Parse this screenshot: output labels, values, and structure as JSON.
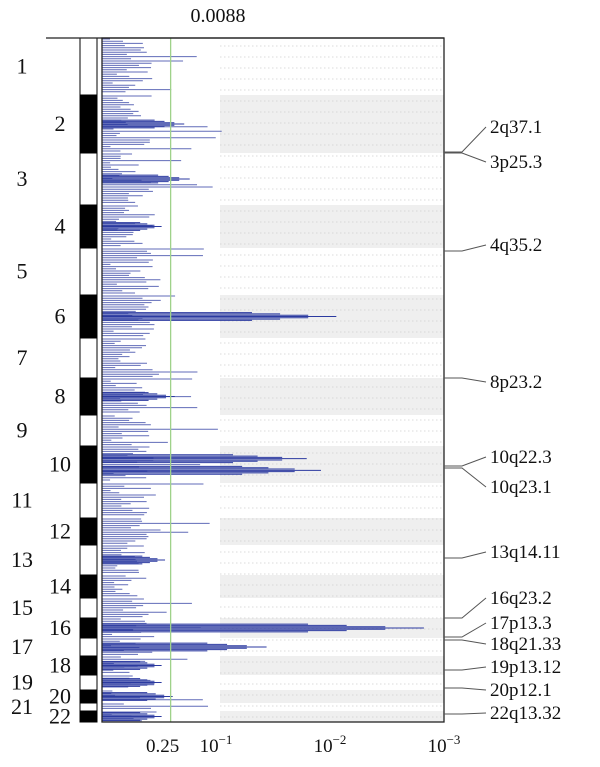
{
  "chart_data": {
    "type": "bar",
    "orientation": "horizontal",
    "x_scale": "log-q-value",
    "threshold": {
      "value": 0.25,
      "label": "0.25",
      "color": "#9fd28a"
    },
    "top_label": "0.0088",
    "x_ticks": [
      {
        "value": 0.1,
        "label": "10",
        "exp": "-1"
      },
      {
        "value": 0.01,
        "label": "10",
        "exp": "-2"
      },
      {
        "value": 0.001,
        "label": "10",
        "exp": "-3"
      }
    ],
    "chromosomes": [
      "1",
      "2",
      "3",
      "4",
      "5",
      "6",
      "7",
      "8",
      "9",
      "10",
      "11",
      "12",
      "13",
      "14",
      "15",
      "16",
      "17",
      "18",
      "19",
      "20",
      "21",
      "22"
    ],
    "bar_color": "#2b3aa0",
    "shading_color": "#efefef",
    "peaks": [
      {
        "chromosome": "2",
        "cytoband": "2q37.1",
        "q_value": 0.19
      },
      {
        "chromosome": "3",
        "cytoband": "3p25.3",
        "q_value": 0.17
      },
      {
        "chromosome": "4",
        "cytoband": "4q35.2",
        "q_value": 0.3
      },
      {
        "chromosome": "6",
        "cytoband": "",
        "q_value": 0.0088
      },
      {
        "chromosome": "8",
        "cytoband": "8p23.2",
        "q_value": 0.23
      },
      {
        "chromosome": "10",
        "cytoband": "10q22.3",
        "q_value": 0.016
      },
      {
        "chromosome": "10",
        "cytoband": "10q23.1",
        "q_value": 0.012
      },
      {
        "chromosome": "13",
        "cytoband": "13q14.11",
        "q_value": 0.28
      },
      {
        "chromosome": "16",
        "cytoband": "16q23.2",
        "q_value": 0.0015
      },
      {
        "chromosome": "17",
        "cytoband": "17p13.3",
        "q_value": 0.036
      },
      {
        "chromosome": "18",
        "cytoband": "18q21.33",
        "q_value": 0.3
      },
      {
        "chromosome": "19",
        "cytoband": "19p13.12",
        "q_value": 0.3
      },
      {
        "chromosome": "20",
        "cytoband": "20p12.1",
        "q_value": 0.24
      },
      {
        "chromosome": "22",
        "cytoband": "22q13.32",
        "q_value": 0.3
      }
    ]
  }
}
